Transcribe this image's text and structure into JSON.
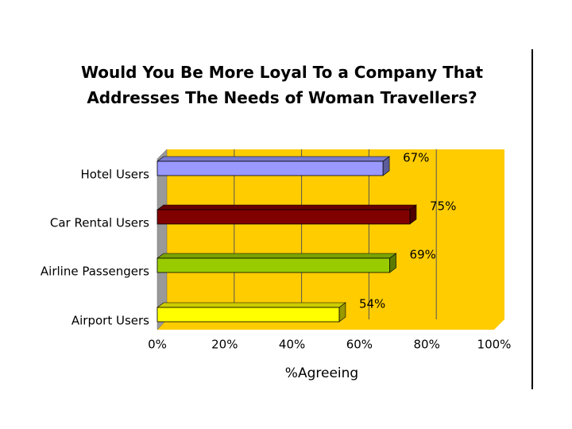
{
  "chart_data": {
    "type": "bar",
    "orientation": "horizontal",
    "title": "Would You Be More Loyal To a Company That Addresses The Needs of Woman Travellers?",
    "categories": [
      "Hotel Users",
      "Car Rental Users",
      "Airline Passengers",
      "Airport Users"
    ],
    "values": [
      67,
      75,
      69,
      54
    ],
    "value_labels": [
      "67%",
      "75%",
      "69%",
      "54%"
    ],
    "colors": [
      "#9999ff",
      "#800000",
      "#99cc00",
      "#ffff00"
    ],
    "xlabel": "%Agreeing",
    "xlim": [
      0,
      100
    ],
    "xticks": [
      {
        "value": 0,
        "label": "0%"
      },
      {
        "value": 20,
        "label": "20%"
      },
      {
        "value": 40,
        "label": "40%"
      },
      {
        "value": 60,
        "label": "60%"
      },
      {
        "value": 80,
        "label": "80%"
      },
      {
        "value": 100,
        "label": "100%"
      }
    ],
    "grid": true
  }
}
